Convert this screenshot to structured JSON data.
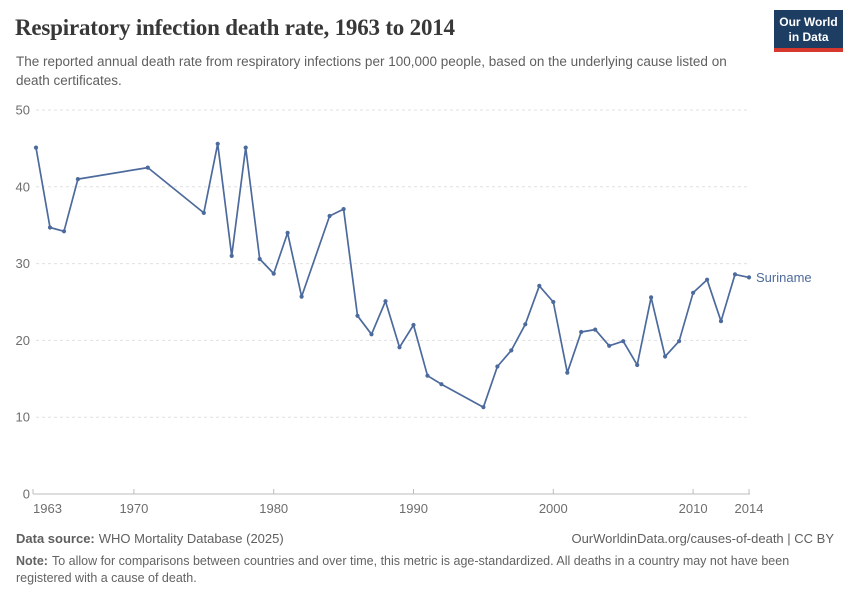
{
  "header": {
    "title": "Respiratory infection death rate, 1963 to 2014",
    "subtitle": "The reported annual death rate from respiratory infections per 100,000 people, based on the underlying cause listed on death certificates.",
    "logo": {
      "line1": "Our World",
      "line2": "in Data",
      "bg_color": "#1d3d63",
      "stripe_color": "#d7382e"
    }
  },
  "chart_data": {
    "type": "line",
    "title": "Respiratory infection death rate, 1963 to 2014",
    "xlabel": "",
    "ylabel": "",
    "xlim": [
      1963,
      2014
    ],
    "ylim": [
      0,
      50
    ],
    "yticks": [
      0,
      10,
      20,
      30,
      40,
      50
    ],
    "xticks": [
      1963,
      1970,
      1980,
      1990,
      2000,
      2010,
      2014
    ],
    "grid": "horizontal-dashed",
    "legend_position": "end-of-line-label",
    "line_color": "#4c6a9c",
    "grid_color": "#e0e0e0",
    "axis_color": "#bdbdbd",
    "tick_text_color": "#6e6e6e",
    "series": [
      {
        "name": "Suriname",
        "points": [
          [
            1963,
            45.1
          ],
          [
            1964,
            34.7
          ],
          [
            1965,
            34.2
          ],
          [
            1966,
            41.0
          ],
          [
            1971,
            42.5
          ],
          [
            1975,
            36.6
          ],
          [
            1976,
            45.6
          ],
          [
            1977,
            31.0
          ],
          [
            1978,
            45.1
          ],
          [
            1979,
            30.6
          ],
          [
            1980,
            28.7
          ],
          [
            1981,
            34.0
          ],
          [
            1982,
            25.7
          ],
          [
            1984,
            36.2
          ],
          [
            1985,
            37.1
          ],
          [
            1986,
            23.2
          ],
          [
            1987,
            20.8
          ],
          [
            1988,
            25.1
          ],
          [
            1989,
            19.1
          ],
          [
            1990,
            22.0
          ],
          [
            1991,
            15.4
          ],
          [
            1992,
            14.3
          ],
          [
            1995,
            11.3
          ],
          [
            1996,
            16.6
          ],
          [
            1997,
            18.7
          ],
          [
            1998,
            22.1
          ],
          [
            1999,
            27.1
          ],
          [
            2000,
            25.0
          ],
          [
            2001,
            15.8
          ],
          [
            2002,
            21.1
          ],
          [
            2003,
            21.4
          ],
          [
            2004,
            19.3
          ],
          [
            2005,
            19.9
          ],
          [
            2006,
            16.8
          ],
          [
            2007,
            25.6
          ],
          [
            2008,
            17.9
          ],
          [
            2009,
            19.9
          ],
          [
            2010,
            26.2
          ],
          [
            2011,
            27.9
          ],
          [
            2012,
            22.5
          ],
          [
            2013,
            28.6
          ],
          [
            2014,
            28.2
          ]
        ]
      }
    ]
  },
  "footer": {
    "data_source_label": "Data source:",
    "data_source": "WHO Mortality Database (2025)",
    "link": "OurWorldinData.org/causes-of-death | CC BY",
    "note_label": "Note:",
    "note": "To allow for comparisons between countries and over time, this metric is age-standardized. All deaths in a country may not have been registered with a cause of death."
  }
}
